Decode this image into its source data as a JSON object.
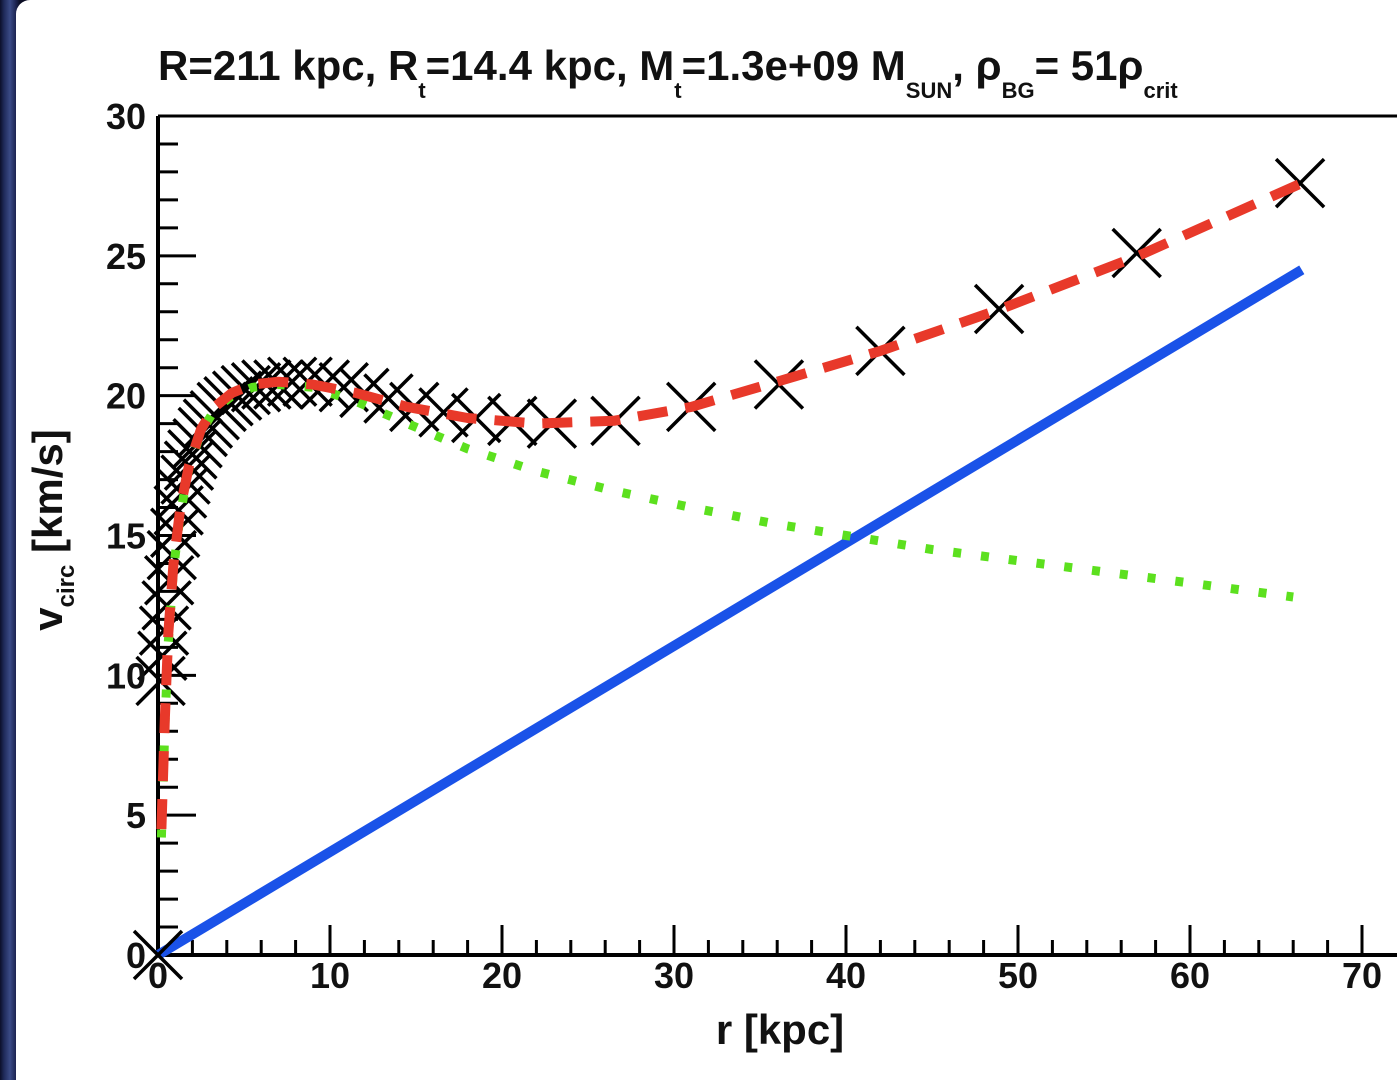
{
  "chart_data": {
    "type": "line",
    "title": {
      "parts": [
        {
          "text": "R=211 kpc, R"
        },
        {
          "text": "t",
          "sub": true
        },
        {
          "text": "=14.4 kpc, M"
        },
        {
          "text": "t",
          "sub": true
        },
        {
          "text": "=1.3e+09 M"
        },
        {
          "text": "SUN",
          "sub": true
        },
        {
          "text": ", ρ"
        },
        {
          "text": "BG",
          "sub": true
        },
        {
          "text": "= 51ρ"
        },
        {
          "text": "crit",
          "sub": true
        }
      ]
    },
    "xlabel": "r [kpc]",
    "ylabel_main": "v",
    "ylabel_sub": "circ",
    "ylabel_unit": " [km/s]",
    "xlim": [
      0,
      70
    ],
    "ylim": [
      0,
      30
    ],
    "x_ticks": [
      "0",
      "10",
      "20",
      "30",
      "40",
      "50",
      "60",
      "70"
    ],
    "y_ticks": [
      "0",
      "5",
      "10",
      "15",
      "20",
      "25",
      "30"
    ],
    "grid": false,
    "legend": "none",
    "series": [
      {
        "style": "markers-x",
        "color": "#000000",
        "x": [
          0,
          0.15,
          0.25,
          0.35,
          0.5,
          0.65,
          0.8,
          1.0,
          1.2,
          1.4,
          1.6,
          1.8,
          2.0,
          2.3,
          2.6,
          2.9,
          3.3,
          3.7,
          4.1,
          4.6,
          5.1,
          5.7,
          6.3,
          7.0,
          7.8,
          8.7,
          9.7,
          10.8,
          12.0,
          13.4,
          14.9,
          16.6,
          18.5,
          20.6,
          22.9,
          26.6,
          31.0,
          36.1,
          42.0,
          48.9,
          56.9,
          66.4
        ],
        "y": [
          0,
          9.8,
          10.7,
          11.6,
          12.5,
          13.4,
          14.3,
          15.1,
          15.9,
          16.5,
          17.0,
          17.5,
          17.9,
          18.3,
          18.7,
          19.0,
          19.3,
          19.6,
          19.8,
          20.0,
          20.2,
          20.3,
          20.4,
          20.4,
          20.5,
          20.5,
          20.4,
          20.3,
          20.1,
          19.9,
          19.6,
          19.4,
          19.2,
          19.1,
          19.0,
          19.1,
          19.6,
          20.4,
          21.6,
          23.1,
          25.1,
          27.6
        ]
      },
      {
        "style": "dashed",
        "color": "#e8392a",
        "x": [
          0.2,
          0.4,
          0.6,
          0.9,
          1.3,
          1.8,
          2.5,
          3.3,
          4.3,
          5.5,
          7.0,
          9.0,
          11.5,
          14.5,
          18.0,
          22.0,
          26.5,
          31.0,
          36.0,
          42.0,
          49.0,
          57.0,
          66.5
        ],
        "y": [
          4.5,
          8.5,
          11.5,
          14.0,
          16.0,
          17.5,
          18.8,
          19.6,
          20.1,
          20.4,
          20.5,
          20.4,
          20.1,
          19.6,
          19.2,
          19.0,
          19.1,
          19.6,
          20.5,
          21.6,
          23.1,
          25.0,
          27.6
        ]
      },
      {
        "style": "dotted",
        "color": "#5ce01e",
        "x": [
          0.2,
          0.4,
          0.6,
          0.9,
          1.3,
          1.8,
          2.5,
          3.3,
          4.3,
          5.5,
          7.0,
          9.0,
          11.5,
          14.5,
          18.0,
          22.0,
          26.5,
          31.0,
          36.0,
          40.0,
          45.0,
          50.0,
          55.0,
          60.0,
          66.0
        ],
        "y": [
          4.2,
          8.2,
          11.2,
          13.8,
          15.8,
          17.4,
          18.7,
          19.5,
          20.0,
          20.3,
          20.4,
          20.3,
          19.8,
          19.0,
          18.1,
          17.3,
          16.6,
          16.0,
          15.4,
          15.0,
          14.5,
          14.1,
          13.7,
          13.3,
          12.8
        ]
      },
      {
        "style": "solid",
        "color": "#1a52e8",
        "x": [
          0,
          66.5
        ],
        "y": [
          0,
          24.5
        ]
      }
    ]
  }
}
